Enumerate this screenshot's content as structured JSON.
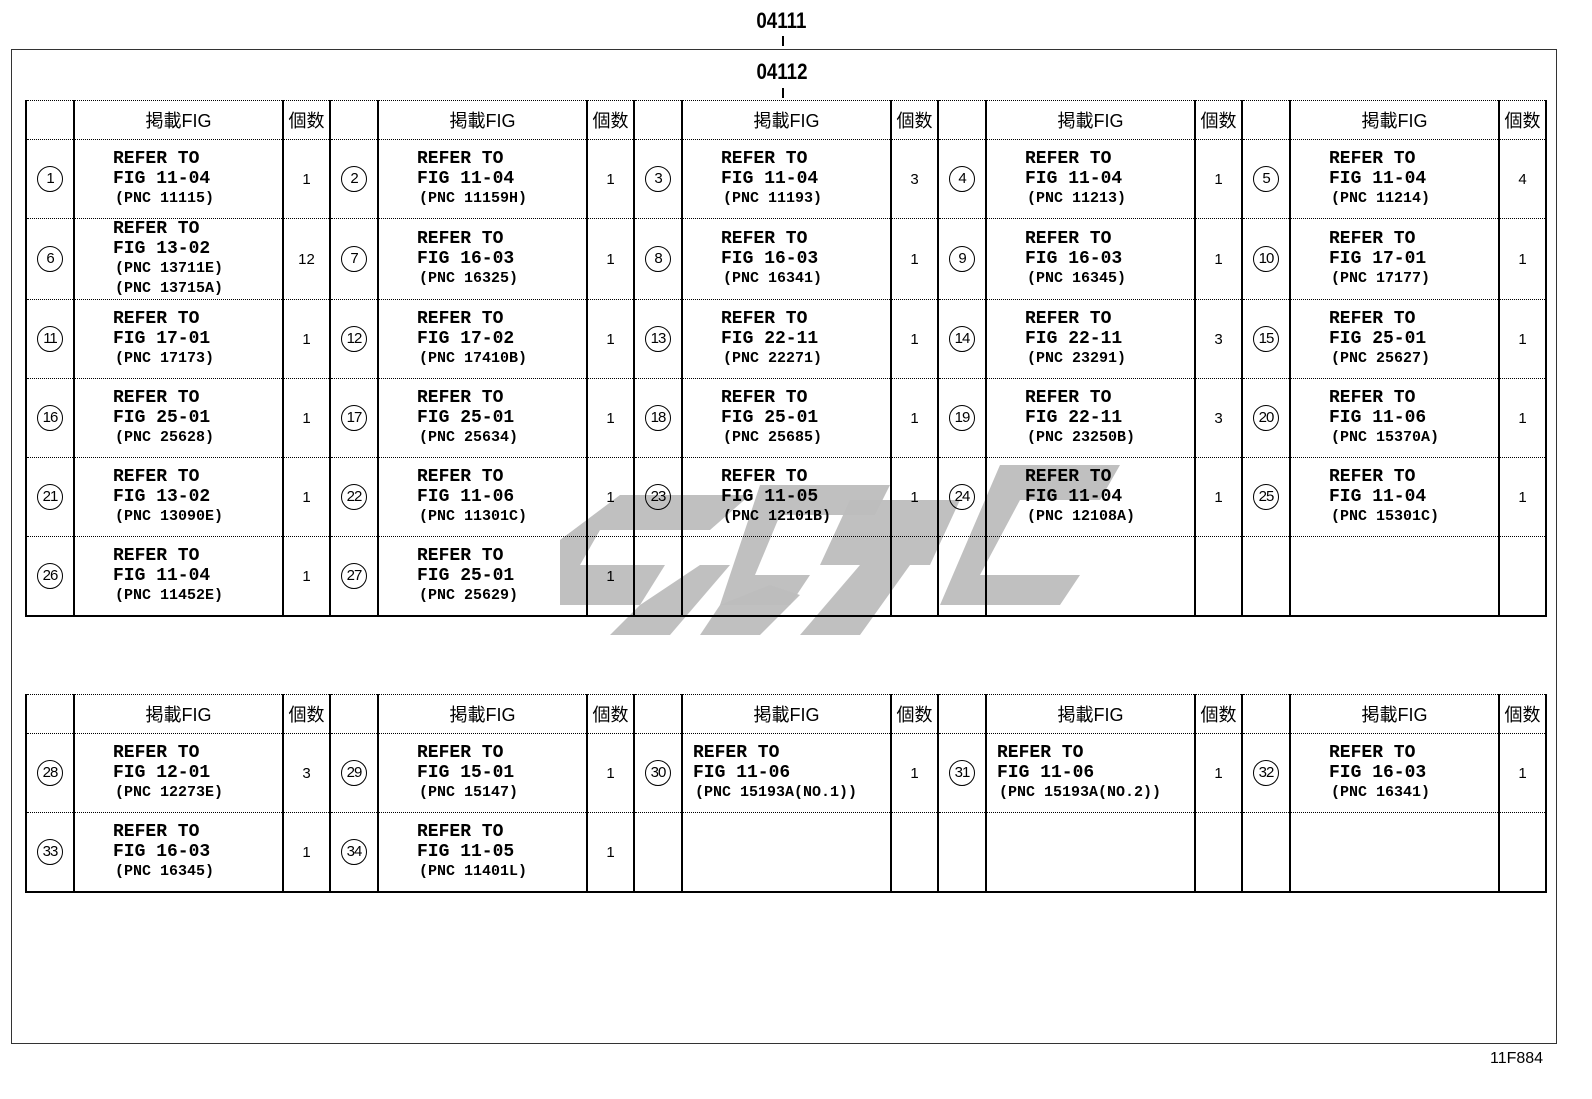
{
  "labels": {
    "top": "04111",
    "inner": "04112",
    "code": "11F884"
  },
  "header": {
    "fig": "掲載FIG",
    "qty": "個数"
  },
  "watermark_color": "#bdbdbd",
  "table1": [
    [
      {
        "n": "1",
        "lines": [
          "REFER TO",
          "FIG 11-04"
        ],
        "pnc": [
          "(PNC 11115)"
        ],
        "qty": "1"
      },
      {
        "n": "2",
        "lines": [
          "REFER TO",
          "FIG 11-04"
        ],
        "pnc": [
          "(PNC 11159H)"
        ],
        "qty": "1"
      },
      {
        "n": "3",
        "lines": [
          "REFER TO",
          "FIG 11-04"
        ],
        "pnc": [
          "(PNC 11193)"
        ],
        "qty": "3"
      },
      {
        "n": "4",
        "lines": [
          "REFER TO",
          "FIG 11-04"
        ],
        "pnc": [
          "(PNC 11213)"
        ],
        "qty": "1"
      },
      {
        "n": "5",
        "lines": [
          "REFER TO",
          "FIG 11-04"
        ],
        "pnc": [
          "(PNC 11214)"
        ],
        "qty": "4"
      }
    ],
    [
      {
        "n": "6",
        "lines": [
          "REFER TO",
          "FIG 13-02"
        ],
        "pnc": [
          "(PNC 13711E)",
          "(PNC 13715A)"
        ],
        "qty": "12"
      },
      {
        "n": "7",
        "lines": [
          "REFER TO",
          "FIG 16-03"
        ],
        "pnc": [
          "(PNC 16325)"
        ],
        "qty": "1"
      },
      {
        "n": "8",
        "lines": [
          "REFER TO",
          "FIG 16-03"
        ],
        "pnc": [
          "(PNC 16341)"
        ],
        "qty": "1"
      },
      {
        "n": "9",
        "lines": [
          "REFER TO",
          "FIG 16-03"
        ],
        "pnc": [
          "(PNC 16345)"
        ],
        "qty": "1"
      },
      {
        "n": "10",
        "lines": [
          "REFER TO",
          "FIG 17-01"
        ],
        "pnc": [
          "(PNC 17177)"
        ],
        "qty": "1"
      }
    ],
    [
      {
        "n": "11",
        "lines": [
          "REFER TO",
          "FIG 17-01"
        ],
        "pnc": [
          "(PNC 17173)"
        ],
        "qty": "1"
      },
      {
        "n": "12",
        "lines": [
          "REFER TO",
          "FIG 17-02"
        ],
        "pnc": [
          "(PNC 17410B)"
        ],
        "qty": "1"
      },
      {
        "n": "13",
        "lines": [
          "REFER TO",
          "FIG 22-11"
        ],
        "pnc": [
          "(PNC 22271)"
        ],
        "qty": "1"
      },
      {
        "n": "14",
        "lines": [
          "REFER TO",
          "FIG 22-11"
        ],
        "pnc": [
          "(PNC 23291)"
        ],
        "qty": "3"
      },
      {
        "n": "15",
        "lines": [
          "REFER TO",
          "FIG 25-01"
        ],
        "pnc": [
          "(PNC 25627)"
        ],
        "qty": "1"
      }
    ],
    [
      {
        "n": "16",
        "lines": [
          "REFER TO",
          "FIG 25-01"
        ],
        "pnc": [
          "(PNC 25628)"
        ],
        "qty": "1"
      },
      {
        "n": "17",
        "lines": [
          "REFER TO",
          "FIG 25-01"
        ],
        "pnc": [
          "(PNC 25634)"
        ],
        "qty": "1"
      },
      {
        "n": "18",
        "lines": [
          "REFER TO",
          "FIG 25-01"
        ],
        "pnc": [
          "(PNC 25685)"
        ],
        "qty": "1"
      },
      {
        "n": "19",
        "lines": [
          "REFER TO",
          "FIG 22-11"
        ],
        "pnc": [
          "(PNC 23250B)"
        ],
        "qty": "3"
      },
      {
        "n": "20",
        "lines": [
          "REFER TO",
          "FIG 11-06"
        ],
        "pnc": [
          "(PNC 15370A)"
        ],
        "qty": "1"
      }
    ],
    [
      {
        "n": "21",
        "lines": [
          "REFER TO",
          "FIG 13-02"
        ],
        "pnc": [
          "(PNC 13090E)"
        ],
        "qty": "1"
      },
      {
        "n": "22",
        "lines": [
          "REFER TO",
          "FIG 11-06"
        ],
        "pnc": [
          "(PNC 11301C)"
        ],
        "qty": "1"
      },
      {
        "n": "23",
        "lines": [
          "REFER TO",
          "FIG 11-05"
        ],
        "pnc": [
          "(PNC 12101B)"
        ],
        "qty": "1"
      },
      {
        "n": "24",
        "lines": [
          "REFER TO",
          "FIG 11-04"
        ],
        "pnc": [
          "(PNC 12108A)"
        ],
        "qty": "1"
      },
      {
        "n": "25",
        "lines": [
          "REFER TO",
          "FIG 11-04"
        ],
        "pnc": [
          "(PNC 15301C)"
        ],
        "qty": "1"
      }
    ],
    [
      {
        "n": "26",
        "lines": [
          "REFER TO",
          "FIG 11-04"
        ],
        "pnc": [
          "(PNC 11452E)"
        ],
        "qty": "1"
      },
      {
        "n": "27",
        "lines": [
          "REFER TO",
          "FIG 25-01"
        ],
        "pnc": [
          "(PNC 25629)"
        ],
        "qty": "1"
      },
      null,
      null,
      null
    ]
  ],
  "table2": [
    [
      {
        "n": "28",
        "lines": [
          "REFER TO",
          "FIG 12-01"
        ],
        "pnc": [
          "(PNC 12273E)"
        ],
        "qty": "3"
      },
      {
        "n": "29",
        "lines": [
          "REFER TO",
          "FIG 15-01"
        ],
        "pnc": [
          "(PNC 15147)"
        ],
        "qty": "1"
      },
      {
        "n": "30",
        "lines": [
          "REFER TO",
          "FIG 11-06"
        ],
        "pnc": [
          "(PNC 15193A(NO.1))"
        ],
        "qty": "1"
      },
      {
        "n": "31",
        "lines": [
          "REFER TO",
          "FIG 11-06"
        ],
        "pnc": [
          "(PNC 15193A(NO.2))"
        ],
        "qty": "1"
      },
      {
        "n": "32",
        "lines": [
          "REFER TO",
          "FIG 16-03"
        ],
        "pnc": [
          "(PNC 16341)"
        ],
        "qty": "1"
      }
    ],
    [
      {
        "n": "33",
        "lines": [
          "REFER TO",
          "FIG 16-03"
        ],
        "pnc": [
          "(PNC 16345)"
        ],
        "qty": "1"
      },
      {
        "n": "34",
        "lines": [
          "REFER TO",
          "FIG 11-05"
        ],
        "pnc": [
          "(PNC 11401L)"
        ],
        "qty": "1"
      },
      null,
      null,
      null
    ]
  ]
}
